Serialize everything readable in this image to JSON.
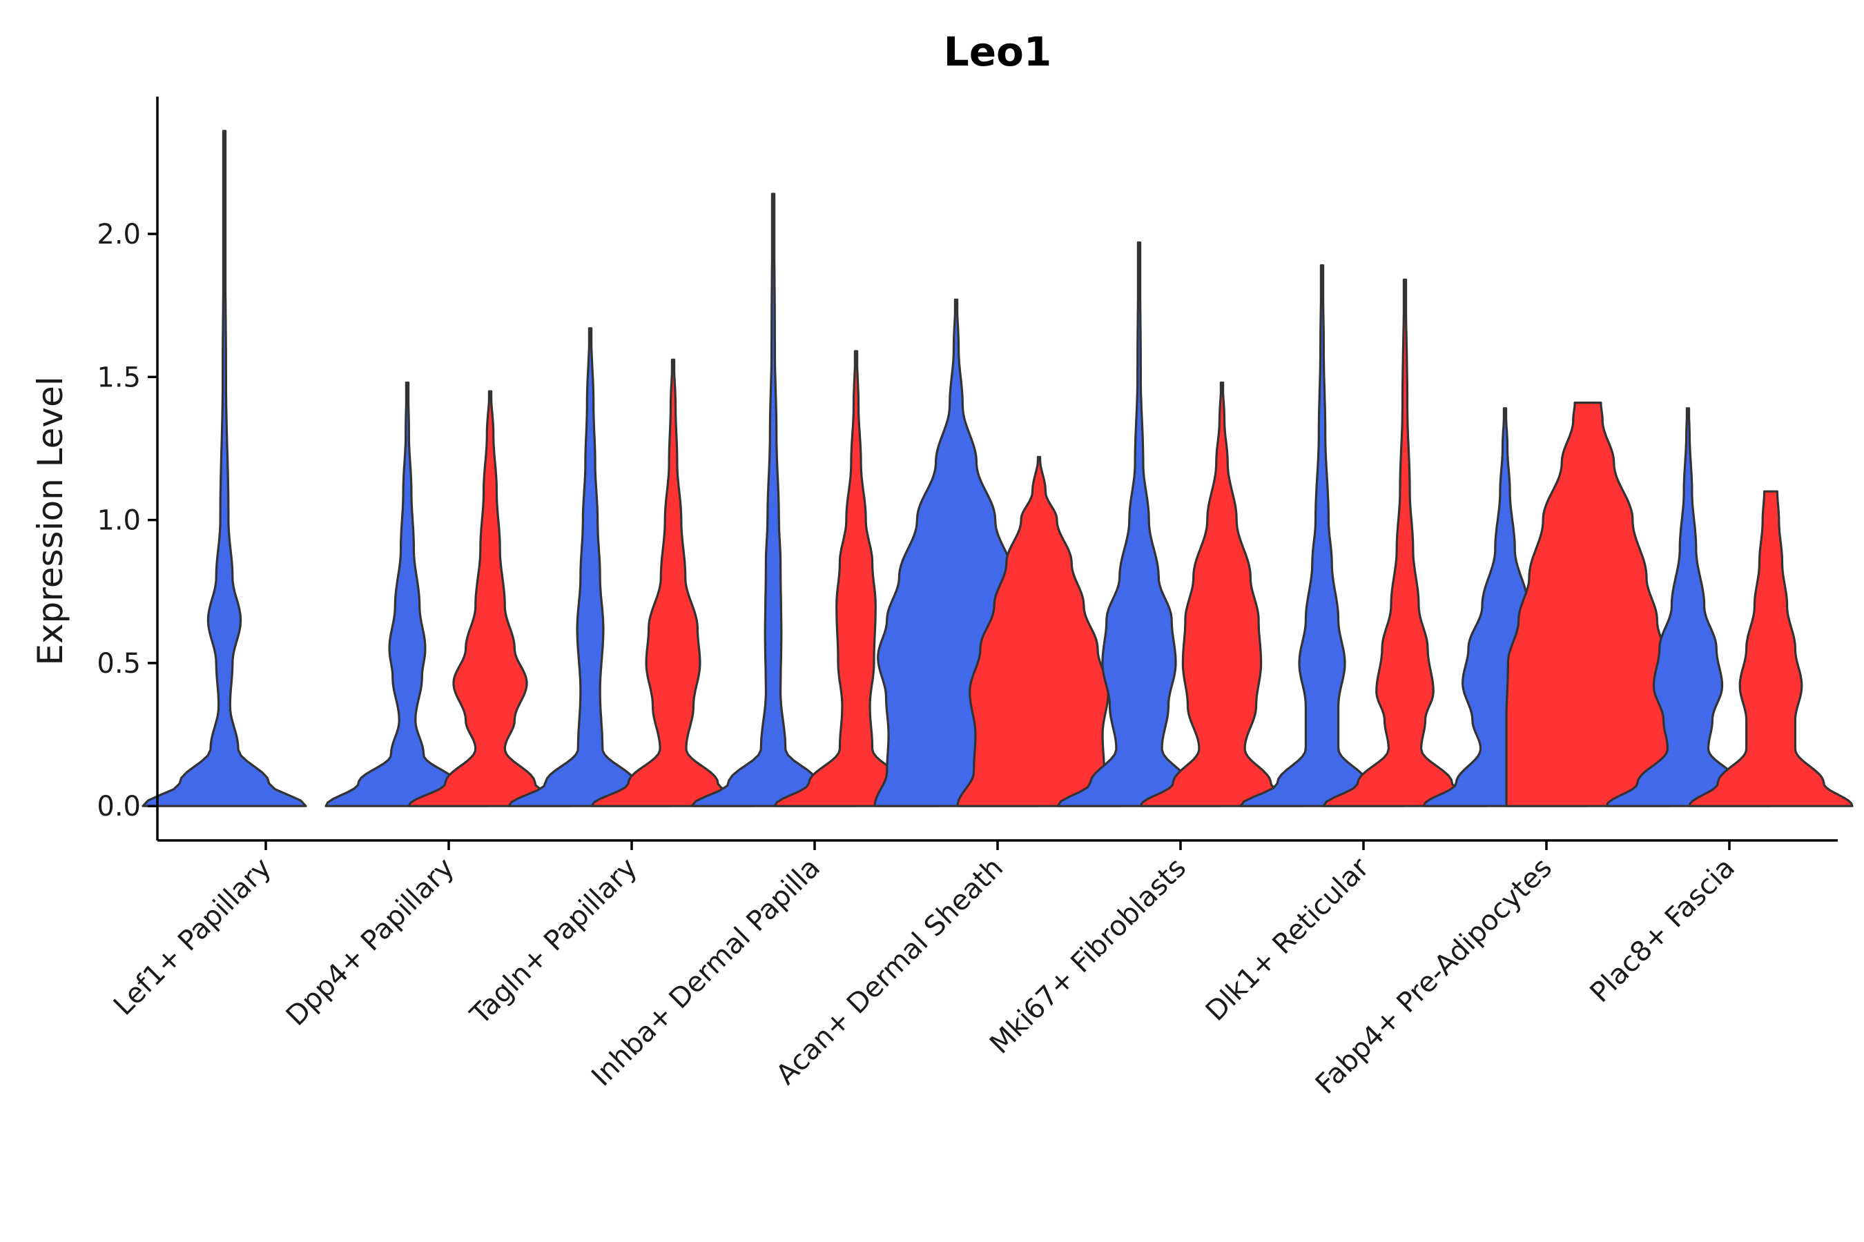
{
  "chart_data": {
    "type": "violin",
    "title": "Leo1",
    "xlabel": "",
    "ylabel": "Expression Level",
    "ylim": [
      -0.12,
      2.48
    ],
    "yticks": [
      0.0,
      0.5,
      1.0,
      1.5,
      2.0
    ],
    "ytick_labels": [
      "0.0",
      "0.5",
      "1.0",
      "1.5",
      "2.0"
    ],
    "categories": [
      "Lef1+ Papillary",
      "Dpp4+ Papillary",
      "Tagln+ Papillary",
      "Inhba+ Dermal Papilla",
      "Acan+ Dermal Sheath",
      "Mki67+ Fibroblasts",
      "Dlk1+ Reticular",
      "Fabp4+ Pre-Adipocytes",
      "Plac8+ Fascia"
    ],
    "series_colors": {
      "group1": "#4169E9",
      "group2": "#FF3333"
    },
    "outline_color": "#333333",
    "violins": [
      {
        "category": "Lef1+ Papillary",
        "group": "group1",
        "max": 2.36,
        "profile": [
          [
            0.0,
            1.0
          ],
          [
            0.08,
            0.55
          ],
          [
            0.2,
            0.17
          ],
          [
            0.35,
            0.07
          ],
          [
            0.5,
            0.1
          ],
          [
            0.65,
            0.2
          ],
          [
            0.8,
            0.1
          ],
          [
            1.0,
            0.05
          ],
          [
            1.5,
            0.02
          ],
          [
            2.0,
            0.01
          ],
          [
            2.36,
            0.01
          ]
        ]
      },
      {
        "category": "Dpp4+ Papillary",
        "group": "group1",
        "max": 1.48,
        "profile": [
          [
            0.0,
            1.0
          ],
          [
            0.08,
            0.6
          ],
          [
            0.18,
            0.2
          ],
          [
            0.3,
            0.1
          ],
          [
            0.45,
            0.18
          ],
          [
            0.55,
            0.22
          ],
          [
            0.7,
            0.15
          ],
          [
            0.9,
            0.08
          ],
          [
            1.1,
            0.05
          ],
          [
            1.3,
            0.02
          ],
          [
            1.48,
            0.01
          ]
        ]
      },
      {
        "category": "Dpp4+ Papillary",
        "group": "group2",
        "max": 1.45,
        "profile": [
          [
            0.0,
            1.0
          ],
          [
            0.08,
            0.55
          ],
          [
            0.2,
            0.18
          ],
          [
            0.3,
            0.3
          ],
          [
            0.43,
            0.45
          ],
          [
            0.55,
            0.3
          ],
          [
            0.7,
            0.18
          ],
          [
            0.9,
            0.12
          ],
          [
            1.1,
            0.08
          ],
          [
            1.3,
            0.04
          ],
          [
            1.45,
            0.01
          ]
        ]
      },
      {
        "category": "Tagln+ Papillary",
        "group": "group1",
        "max": 1.67,
        "profile": [
          [
            0.0,
            1.0
          ],
          [
            0.08,
            0.55
          ],
          [
            0.2,
            0.15
          ],
          [
            0.4,
            0.12
          ],
          [
            0.62,
            0.16
          ],
          [
            0.8,
            0.12
          ],
          [
            1.0,
            0.09
          ],
          [
            1.2,
            0.06
          ],
          [
            1.4,
            0.04
          ],
          [
            1.67,
            0.01
          ]
        ]
      },
      {
        "category": "Tagln+ Papillary",
        "group": "group2",
        "max": 1.56,
        "profile": [
          [
            0.0,
            1.0
          ],
          [
            0.08,
            0.55
          ],
          [
            0.2,
            0.16
          ],
          [
            0.35,
            0.25
          ],
          [
            0.5,
            0.33
          ],
          [
            0.62,
            0.3
          ],
          [
            0.8,
            0.15
          ],
          [
            1.0,
            0.1
          ],
          [
            1.2,
            0.05
          ],
          [
            1.4,
            0.03
          ],
          [
            1.56,
            0.01
          ]
        ]
      },
      {
        "category": "Inhba+ Dermal Papilla",
        "group": "group1",
        "max": 2.14,
        "profile": [
          [
            0.0,
            1.0
          ],
          [
            0.08,
            0.55
          ],
          [
            0.2,
            0.15
          ],
          [
            0.4,
            0.09
          ],
          [
            0.6,
            0.1
          ],
          [
            0.85,
            0.09
          ],
          [
            1.0,
            0.07
          ],
          [
            1.3,
            0.04
          ],
          [
            1.6,
            0.02
          ],
          [
            2.14,
            0.01
          ]
        ]
      },
      {
        "category": "Inhba+ Dermal Papilla",
        "group": "group2",
        "max": 1.59,
        "profile": [
          [
            0.0,
            1.0
          ],
          [
            0.08,
            0.58
          ],
          [
            0.2,
            0.2
          ],
          [
            0.35,
            0.17
          ],
          [
            0.5,
            0.22
          ],
          [
            0.7,
            0.24
          ],
          [
            0.85,
            0.2
          ],
          [
            1.0,
            0.12
          ],
          [
            1.2,
            0.06
          ],
          [
            1.4,
            0.03
          ],
          [
            1.59,
            0.01
          ]
        ]
      },
      {
        "category": "Acan+ Dermal Sheath",
        "group": "group1",
        "max": 1.77,
        "profile": [
          [
            0.0,
            1.0
          ],
          [
            0.12,
            0.85
          ],
          [
            0.25,
            0.83
          ],
          [
            0.38,
            0.86
          ],
          [
            0.52,
            0.96
          ],
          [
            0.65,
            0.85
          ],
          [
            0.8,
            0.7
          ],
          [
            1.0,
            0.48
          ],
          [
            1.2,
            0.25
          ],
          [
            1.4,
            0.08
          ],
          [
            1.6,
            0.03
          ],
          [
            1.77,
            0.01
          ]
        ]
      },
      {
        "category": "Acan+ Dermal Sheath",
        "group": "group2",
        "max": 1.22,
        "profile": [
          [
            0.0,
            1.0
          ],
          [
            0.12,
            0.8
          ],
          [
            0.25,
            0.78
          ],
          [
            0.4,
            0.85
          ],
          [
            0.55,
            0.72
          ],
          [
            0.7,
            0.55
          ],
          [
            0.85,
            0.4
          ],
          [
            1.0,
            0.22
          ],
          [
            1.1,
            0.08
          ],
          [
            1.22,
            0.01
          ]
        ]
      },
      {
        "category": "Mki67+ Fibroblasts",
        "group": "group1",
        "max": 1.97,
        "profile": [
          [
            0.0,
            1.0
          ],
          [
            0.08,
            0.6
          ],
          [
            0.2,
            0.28
          ],
          [
            0.35,
            0.36
          ],
          [
            0.5,
            0.45
          ],
          [
            0.65,
            0.4
          ],
          [
            0.8,
            0.24
          ],
          [
            1.0,
            0.12
          ],
          [
            1.2,
            0.05
          ],
          [
            1.5,
            0.02
          ],
          [
            1.97,
            0.01
          ]
        ]
      },
      {
        "category": "Mki67+ Fibroblasts",
        "group": "group2",
        "max": 1.48,
        "profile": [
          [
            0.0,
            1.0
          ],
          [
            0.08,
            0.6
          ],
          [
            0.2,
            0.28
          ],
          [
            0.35,
            0.42
          ],
          [
            0.5,
            0.48
          ],
          [
            0.65,
            0.45
          ],
          [
            0.8,
            0.35
          ],
          [
            1.0,
            0.18
          ],
          [
            1.2,
            0.07
          ],
          [
            1.35,
            0.03
          ],
          [
            1.48,
            0.01
          ]
        ]
      },
      {
        "category": "Dlk1+ Reticular",
        "group": "group1",
        "max": 1.89,
        "profile": [
          [
            0.0,
            1.0
          ],
          [
            0.08,
            0.55
          ],
          [
            0.2,
            0.2
          ],
          [
            0.35,
            0.2
          ],
          [
            0.5,
            0.28
          ],
          [
            0.65,
            0.2
          ],
          [
            0.85,
            0.12
          ],
          [
            1.0,
            0.08
          ],
          [
            1.3,
            0.04
          ],
          [
            1.6,
            0.02
          ],
          [
            1.89,
            0.01
          ]
        ]
      },
      {
        "category": "Dlk1+ Reticular",
        "group": "group2",
        "max": 1.84,
        "profile": [
          [
            0.0,
            1.0
          ],
          [
            0.08,
            0.58
          ],
          [
            0.2,
            0.2
          ],
          [
            0.3,
            0.25
          ],
          [
            0.4,
            0.35
          ],
          [
            0.55,
            0.28
          ],
          [
            0.7,
            0.17
          ],
          [
            0.9,
            0.1
          ],
          [
            1.1,
            0.06
          ],
          [
            1.4,
            0.03
          ],
          [
            1.84,
            0.01
          ]
        ]
      },
      {
        "category": "Fabp4+ Pre-Adipocytes",
        "group": "group1",
        "max": 1.39,
        "profile": [
          [
            0.0,
            1.0
          ],
          [
            0.08,
            0.6
          ],
          [
            0.2,
            0.3
          ],
          [
            0.3,
            0.4
          ],
          [
            0.43,
            0.52
          ],
          [
            0.55,
            0.45
          ],
          [
            0.7,
            0.28
          ],
          [
            0.9,
            0.12
          ],
          [
            1.1,
            0.06
          ],
          [
            1.25,
            0.03
          ],
          [
            1.39,
            0.01
          ]
        ]
      },
      {
        "category": "Fabp4+ Pre-Adipocytes",
        "group": "group2",
        "max": 1.41,
        "profile": [
          [
            0.0,
            1.0
          ],
          [
            0.3,
            1.0
          ],
          [
            0.5,
            0.98
          ],
          [
            0.65,
            0.85
          ],
          [
            0.8,
            0.72
          ],
          [
            1.0,
            0.55
          ],
          [
            1.2,
            0.32
          ],
          [
            1.35,
            0.18
          ],
          [
            1.41,
            0.16
          ]
        ]
      },
      {
        "category": "Plac8+ Fascia",
        "group": "group1",
        "max": 1.39,
        "profile": [
          [
            0.0,
            1.0
          ],
          [
            0.08,
            0.62
          ],
          [
            0.2,
            0.25
          ],
          [
            0.3,
            0.3
          ],
          [
            0.42,
            0.42
          ],
          [
            0.55,
            0.35
          ],
          [
            0.7,
            0.2
          ],
          [
            0.9,
            0.1
          ],
          [
            1.1,
            0.05
          ],
          [
            1.3,
            0.02
          ],
          [
            1.39,
            0.01
          ]
        ]
      },
      {
        "category": "Plac8+ Fascia",
        "group": "group2",
        "max": 1.1,
        "profile": [
          [
            0.0,
            1.0
          ],
          [
            0.08,
            0.65
          ],
          [
            0.2,
            0.3
          ],
          [
            0.3,
            0.3
          ],
          [
            0.42,
            0.38
          ],
          [
            0.55,
            0.3
          ],
          [
            0.7,
            0.2
          ],
          [
            0.85,
            0.14
          ],
          [
            1.0,
            0.1
          ],
          [
            1.1,
            0.08
          ]
        ]
      }
    ]
  }
}
